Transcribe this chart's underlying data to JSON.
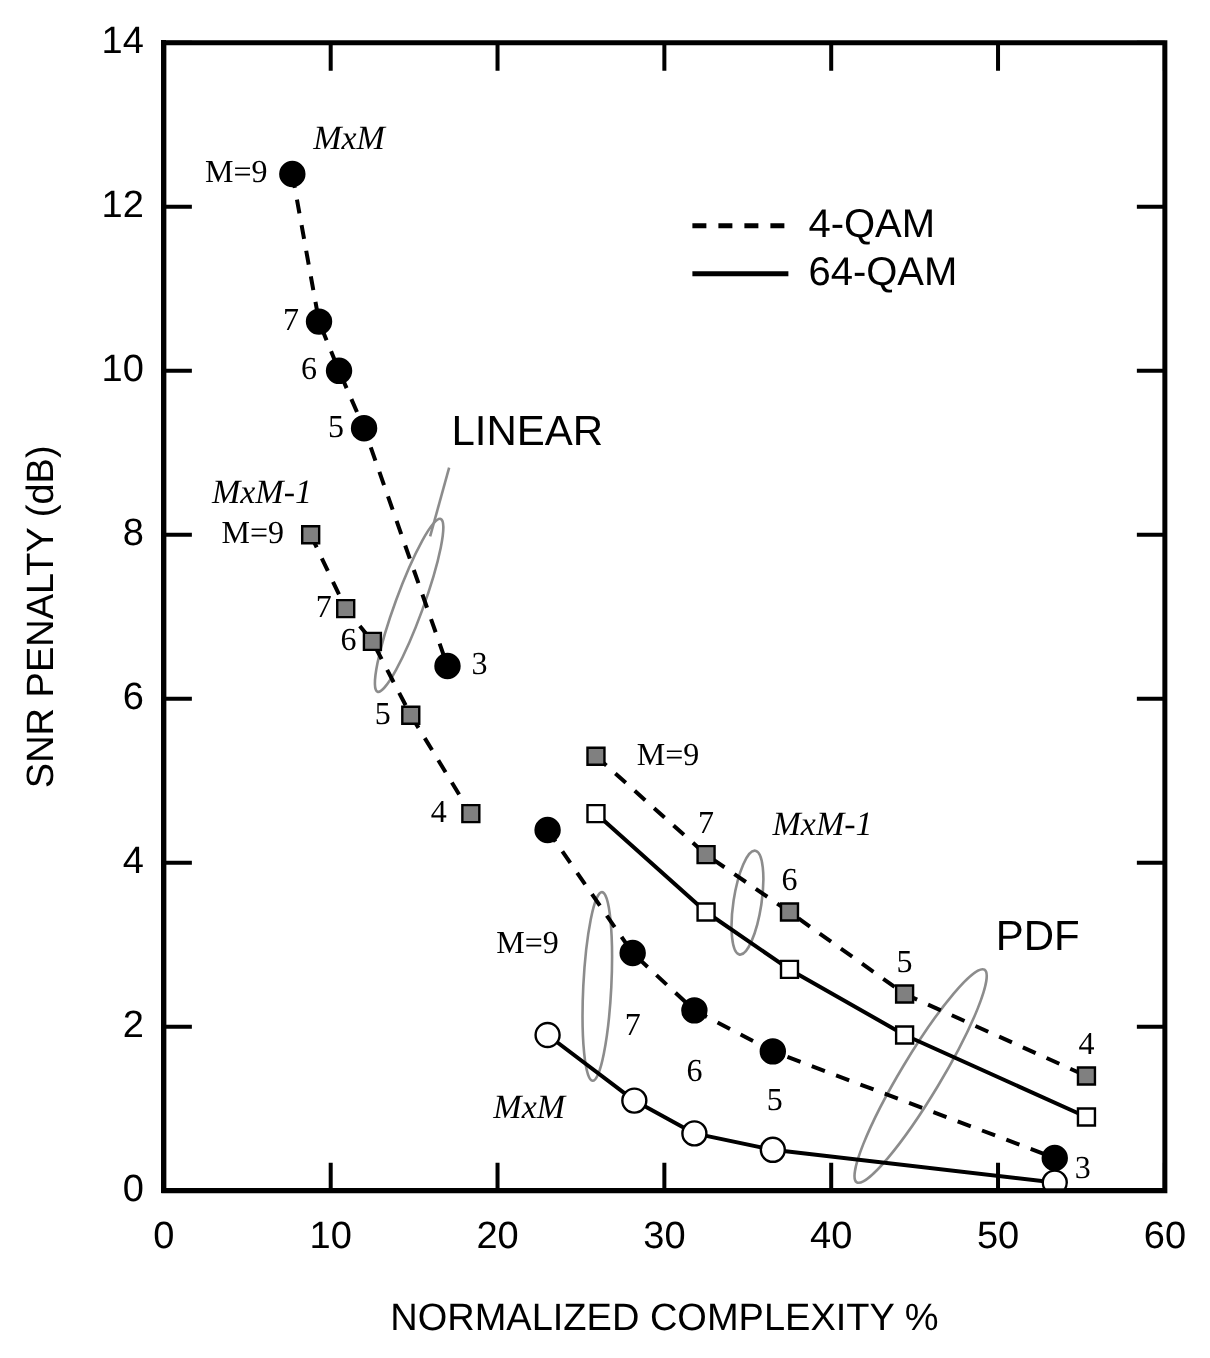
{
  "chart_data": {
    "type": "line",
    "xlabel": "NORMALIZED COMPLEXITY %",
    "ylabel": "SNR PENALTY (dB)",
    "xlim": [
      0,
      60
    ],
    "xticks": [
      0,
      10,
      20,
      30,
      40,
      50,
      60
    ],
    "ylim": [
      0,
      14
    ],
    "yticks": [
      0,
      2,
      4,
      6,
      8,
      10,
      12,
      14
    ],
    "grid": false,
    "legend": "top right",
    "series": [
      {
        "name": "4-QAM",
        "color": "#000000",
        "marker": "circle",
        "line_style": "dashed",
        "x": [
          7.7,
          9.3,
          10.5,
          12.0,
          17.0
        ],
        "values": [
          12.4,
          10.6,
          10.0,
          9.3,
          6.4
        ]
      },
      {
        "color": "#808080",
        "marker": "square",
        "line_style": "dashed",
        "x": [
          8.8,
          10.9,
          12.5,
          14.8,
          18.4
        ],
        "values": [
          8.0,
          7.1,
          6.7,
          5.8,
          4.6
        ]
      },
      {
        "color": "#000000",
        "marker": "circle",
        "line_style": "dashed",
        "x": [
          23.0,
          28.1,
          31.8,
          36.5,
          53.4
        ],
        "values": [
          4.4,
          2.9,
          2.2,
          1.7,
          0.4
        ]
      },
      {
        "name": "64-QAM",
        "color": "#ffffff",
        "marker": "circle",
        "line_style": "solid",
        "x": [
          23.0,
          28.2,
          31.8,
          36.5,
          53.4
        ],
        "values": [
          1.9,
          1.1,
          0.7,
          0.5,
          0.1
        ]
      },
      {
        "color": "#808080",
        "marker": "square",
        "line_style": "dashed",
        "x": [
          25.9,
          32.5,
          37.5,
          44.4,
          55.3
        ],
        "values": [
          5.3,
          4.1,
          3.4,
          2.4,
          1.4
        ]
      },
      {
        "color": "#ffffff",
        "marker": "square",
        "line_style": "solid",
        "x": [
          25.9,
          32.5,
          37.5,
          44.4,
          55.3
        ],
        "values": [
          4.6,
          3.4,
          2.7,
          1.9,
          0.9
        ]
      }
    ],
    "annotations": [
      {
        "text": "M=9",
        "x": 7.7,
        "y": 12.4
      },
      {
        "text": "7",
        "x": 9.3,
        "y": 10.6
      },
      {
        "text": "6",
        "x": 10.5,
        "y": 10.0
      },
      {
        "text": "5",
        "x": 12.0,
        "y": 9.3
      },
      {
        "text": "3",
        "x": 17.0,
        "y": 6.4
      },
      {
        "text": "M=9",
        "x": 8.8,
        "y": 8.0
      },
      {
        "text": "7",
        "x": 10.9,
        "y": 7.1
      },
      {
        "text": "6",
        "x": 12.5,
        "y": 6.7
      },
      {
        "text": "5",
        "x": 14.8,
        "y": 5.8
      },
      {
        "text": "4",
        "x": 18.4,
        "y": 4.6
      },
      {
        "text": "M=9",
        "x": 23.0,
        "y": 1.9
      },
      {
        "text": "7",
        "x": 28.1,
        "y": 2.9
      },
      {
        "text": "6",
        "x": 31.8,
        "y": 2.2
      },
      {
        "text": "5",
        "x": 36.5,
        "y": 1.7
      },
      {
        "text": "3",
        "x": 53.4,
        "y": 0.4
      },
      {
        "text": "M=9",
        "x": 25.9,
        "y": 5.3
      },
      {
        "text": "7",
        "x": 32.5,
        "y": 4.1
      },
      {
        "text": "6",
        "x": 37.5,
        "y": 3.4
      },
      {
        "text": "5",
        "x": 44.4,
        "y": 2.4
      },
      {
        "text": "4",
        "x": 55.3,
        "y": 1.4
      },
      "MxM",
      "LINEAR",
      "MxM-1",
      "MxM",
      "MxM-1",
      "PDF"
    ]
  }
}
